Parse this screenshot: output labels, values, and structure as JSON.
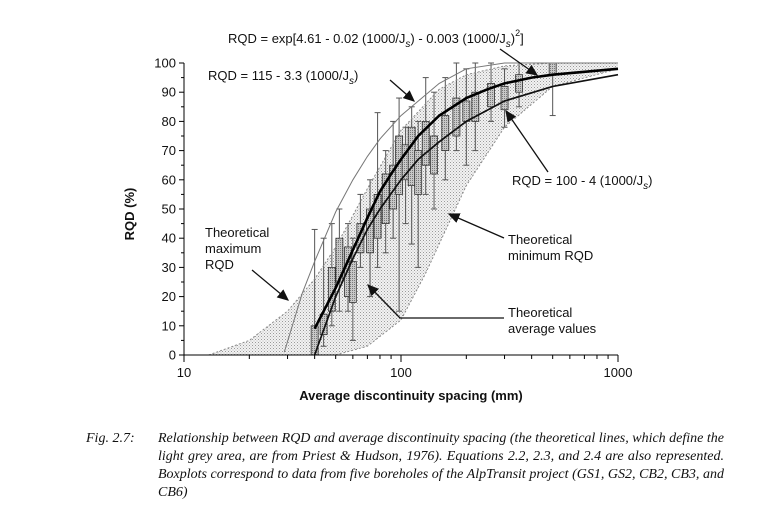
{
  "chart_data": {
    "type": "line",
    "xscale": "log",
    "xlim": [
      10,
      1000
    ],
    "ylim": [
      0,
      100
    ],
    "xlabel": "Average discontinuity spacing (mm)",
    "ylabel": "RQD (%)",
    "x_tick_labels": [
      "10",
      "100",
      "1000"
    ],
    "y_tick_labels": [
      "0",
      "10",
      "20",
      "30",
      "40",
      "50",
      "60",
      "70",
      "80",
      "90",
      "100"
    ],
    "legend": "none",
    "shaded_region": "light grey area between theoretical maximum and theoretical minimum RQD",
    "series": [
      {
        "name": "Theoretical maximum RQD",
        "style": "thin dotted grey",
        "x": [
          13,
          20,
          30,
          40,
          50,
          70,
          100,
          150,
          200,
          300,
          500,
          1000
        ],
        "y": [
          0,
          5,
          15,
          26,
          37,
          57,
          77,
          91,
          96,
          99,
          100,
          100
        ]
      },
      {
        "name": "Theoretical minimum RQD",
        "style": "thin dotted grey",
        "x": [
          50,
          70,
          100,
          130,
          150,
          200,
          300,
          500,
          1000
        ],
        "y": [
          0,
          3,
          12,
          28,
          38,
          58,
          78,
          92,
          98
        ]
      },
      {
        "name": "RQD = exp[4.61 - 0.02 (1000/Js) - 0.003 (1000/Js)^2]",
        "style": "thick black",
        "x": [
          40,
          50,
          60,
          70,
          80,
          90,
          100,
          120,
          150,
          200,
          250,
          300,
          400,
          500,
          700,
          1000
        ],
        "y": [
          9,
          23,
          36,
          47,
          56,
          62,
          67,
          75,
          82,
          88,
          91,
          93,
          95,
          96,
          97,
          98
        ]
      },
      {
        "name": "RQD = 100 - 4 (1000/Js)",
        "style": "medium black",
        "x": [
          40,
          50,
          60,
          70,
          80,
          100,
          120,
          150,
          200,
          300,
          500,
          1000
        ],
        "y": [
          0,
          20,
          33,
          43,
          50,
          60,
          67,
          73,
          80,
          87,
          92,
          96
        ]
      },
      {
        "name": "RQD = 115 - 3.3 (1000/Js)",
        "style": "thin grey",
        "x": [
          29,
          35,
          40,
          50,
          60,
          70,
          80,
          100,
          150,
          200,
          300,
          500,
          1000
        ],
        "y": [
          1,
          21,
          32,
          49,
          60,
          68,
          74,
          82,
          93,
          98,
          100,
          100,
          100
        ]
      }
    ],
    "boxplots": [
      {
        "x": 40,
        "whisker": [
          0,
          43
        ],
        "box": [
          0,
          10
        ]
      },
      {
        "x": 44,
        "whisker": [
          3,
          40
        ],
        "box": [
          7,
          14
        ]
      },
      {
        "x": 48,
        "whisker": [
          10,
          45
        ],
        "box": [
          15,
          30
        ]
      },
      {
        "x": 52,
        "whisker": [
          15,
          50
        ],
        "box": [
          25,
          40
        ]
      },
      {
        "x": 57,
        "whisker": [
          15,
          45
        ],
        "box": [
          20,
          37
        ]
      },
      {
        "x": 60,
        "whisker": [
          5,
          40
        ],
        "box": [
          18,
          32
        ]
      },
      {
        "x": 65,
        "whisker": [
          30,
          55
        ],
        "box": [
          35,
          45
        ]
      },
      {
        "x": 72,
        "whisker": [
          20,
          60
        ],
        "box": [
          35,
          50
        ]
      },
      {
        "x": 78,
        "whisker": [
          30,
          83
        ],
        "box": [
          40,
          55
        ]
      },
      {
        "x": 85,
        "whisker": [
          35,
          70
        ],
        "box": [
          45,
          62
        ]
      },
      {
        "x": 92,
        "whisker": [
          40,
          80
        ],
        "box": [
          50,
          65
        ]
      },
      {
        "x": 98,
        "whisker": [
          15,
          88
        ],
        "box": [
          55,
          75
        ]
      },
      {
        "x": 105,
        "whisker": [
          45,
          78
        ],
        "box": [
          60,
          72
        ]
      },
      {
        "x": 112,
        "whisker": [
          38,
          85
        ],
        "box": [
          58,
          78
        ]
      },
      {
        "x": 120,
        "whisker": [
          30,
          80
        ],
        "box": [
          55,
          70
        ]
      },
      {
        "x": 130,
        "whisker": [
          55,
          95
        ],
        "box": [
          65,
          80
        ]
      },
      {
        "x": 142,
        "whisker": [
          50,
          90
        ],
        "box": [
          62,
          75
        ]
      },
      {
        "x": 160,
        "whisker": [
          60,
          95
        ],
        "box": [
          70,
          82
        ]
      },
      {
        "x": 180,
        "whisker": [
          70,
          100
        ],
        "box": [
          75,
          88
        ]
      },
      {
        "x": 200,
        "whisker": [
          65,
          98
        ],
        "box": [
          80,
          87
        ]
      },
      {
        "x": 220,
        "whisker": [
          70,
          100
        ],
        "box": [
          80,
          90
        ]
      },
      {
        "x": 260,
        "whisker": [
          80,
          100
        ],
        "box": [
          85,
          93
        ]
      },
      {
        "x": 300,
        "whisker": [
          78,
          98
        ],
        "box": [
          84,
          92
        ]
      },
      {
        "x": 350,
        "whisker": [
          85,
          100
        ],
        "box": [
          90,
          96
        ]
      },
      {
        "x": 500,
        "whisker": [
          82,
          100
        ],
        "box": [
          96,
          100
        ]
      }
    ],
    "annotations": {
      "eq_exp": "RQD = exp[4.61 - 0.02 (1000/J",
      "eq_exp_mid": ") - 0.003 (1000/J",
      "eq_exp_end": "]",
      "eq_115": "RQD = 115 - 3.3 (1000/J",
      "eq_100": "RQD = 100 - 4 (1000/J",
      "subscript": "s",
      "superscript": "2",
      "close_paren": ")",
      "theo_max_1": "Theoretical",
      "theo_max_2": "maximum",
      "theo_max_3": "RQD",
      "theo_min_1": "Theoretical",
      "theo_min_2": "minimum RQD",
      "theo_avg_1": "Theoretical",
      "theo_avg_2": "average values"
    }
  },
  "caption": {
    "label": "Fig. 2.7:",
    "text": "Relationship between RQD and average discontinuity spacing (the theoretical lines, which define the light grey area, are from Priest & Hudson, 1976). Equations 2.2, 2.3, and 2.4 are also represented. Boxplots correspond to data from five boreholes of the AlpTransit project (GS1, GS2, CB2, CB3, and CB6)"
  }
}
